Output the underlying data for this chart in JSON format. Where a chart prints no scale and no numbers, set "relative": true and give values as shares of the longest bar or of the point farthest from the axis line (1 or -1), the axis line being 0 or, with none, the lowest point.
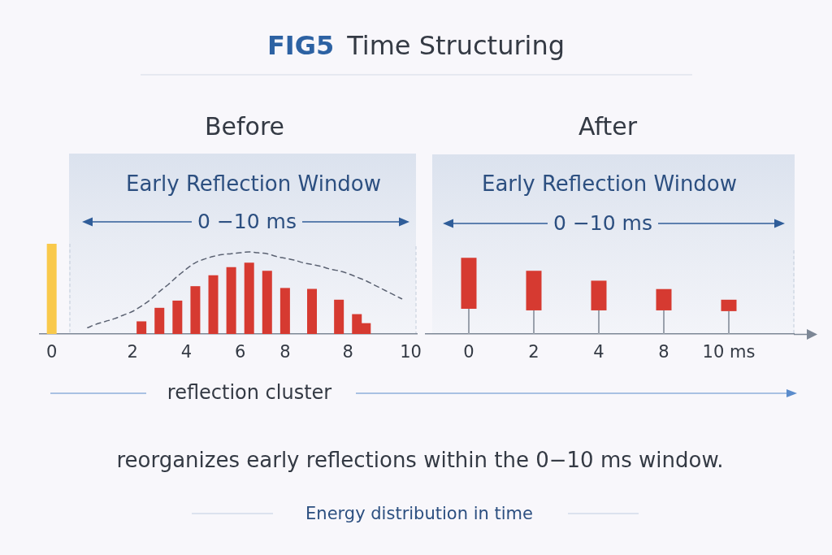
{
  "chart_data": [
    {
      "type": "other",
      "title": "FIG5 Time Structuring"
    },
    {
      "type": "bar",
      "title": "Before",
      "relative": true,
      "categories": [
        "0",
        null,
        null,
        null,
        null,
        null,
        null,
        null,
        null,
        "2",
        null,
        null,
        null,
        null,
        null,
        "4",
        null,
        null,
        null,
        null,
        null,
        "6",
        null,
        null,
        null,
        null,
        "8",
        null,
        null,
        null,
        null,
        null,
        null,
        "8",
        null,
        null,
        null,
        null,
        null,
        null,
        "10"
      ],
      "annotations": [
        "Early Reflection Window",
        "0 −10 ms"
      ],
      "series": [
        {
          "values": [
            1,
            null,
            null,
            null,
            null,
            null,
            null,
            null,
            null,
            null,
            0.14,
            null,
            0.29,
            null,
            0.37,
            null,
            0.53,
            null,
            0.65,
            null,
            0.74,
            null,
            0.79,
            null,
            0.7,
            null,
            0.51,
            null,
            null,
            0.5,
            null,
            null,
            0.38,
            null,
            0.22,
            0.12,
            null,
            null,
            null,
            null,
            null
          ],
          "colors": [
            "#f9c94b",
            null,
            null,
            null,
            null,
            null,
            null,
            null,
            null,
            null,
            "#d63a31",
            null,
            "#d63a31",
            null,
            "#d63a31",
            null,
            "#d63a31",
            null,
            "#d63a31",
            null,
            "#d63a31",
            null,
            "#d63a31",
            null,
            "#d63a31",
            null,
            "#d63a31",
            null,
            null,
            "#d63a31",
            null,
            null,
            "#d63a31",
            null,
            "#d63a31",
            "#d63a31",
            null,
            null,
            null,
            null,
            null
          ]
        },
        {
          "type": "line",
          "values": [
            null,
            null,
            null,
            null,
            0.07,
            0.11,
            0.14,
            0.17,
            0.21,
            0.25,
            0.31,
            0.38,
            0.47,
            0.55,
            0.64,
            0.72,
            0.79,
            0.83,
            0.86,
            0.88,
            0.89,
            0.9,
            0.91,
            0.9,
            0.89,
            0.86,
            0.84,
            0.82,
            0.79,
            0.77,
            0.75,
            0.72,
            0.7,
            0.67,
            0.63,
            0.59,
            0.54,
            0.49,
            0.44,
            0.39,
            null
          ],
          "color": "#5b6272",
          "line_style": "dashed",
          "marker": "none"
        }
      ]
    },
    {
      "type": "bar",
      "title": "After",
      "relative": true,
      "stacked": true,
      "categories": [
        "0",
        "2",
        "4",
        "8",
        "10 ms"
      ],
      "annotations": [
        "Early Reflection Window",
        "0 −10 ms"
      ],
      "series": [
        {
          "values": [
            0.33,
            0.31,
            0.31,
            0.31,
            0.3
          ],
          "color": "#9aa1ac"
        },
        {
          "values": [
            0.67,
            0.52,
            0.39,
            0.28,
            0.15
          ],
          "color": "#d63a31"
        }
      ]
    },
    {
      "type": "other",
      "annotations": [
        "reflection cluster",
        "reorganizes early reflections within the 0−10 ms window.",
        "Energy distribution in time"
      ]
    }
  ]
}
